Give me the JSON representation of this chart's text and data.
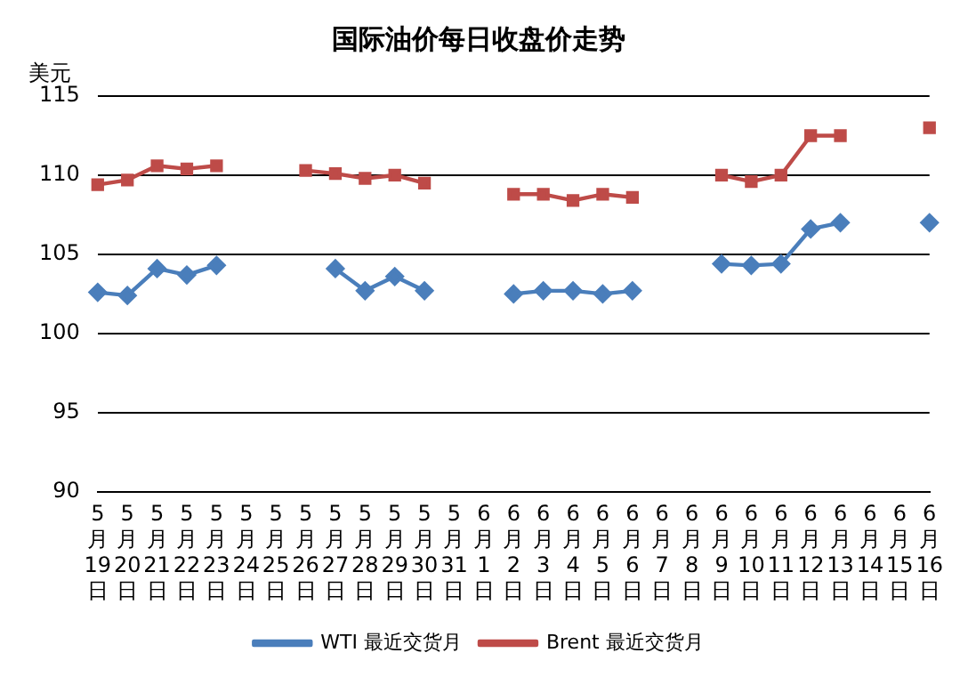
{
  "chart_data": {
    "type": "line",
    "title": "国际油价每日收盘价走势",
    "ylabel": "美元",
    "categories": [
      "5月19日",
      "5月20日",
      "5月21日",
      "5月22日",
      "5月23日",
      "5月24日",
      "5月25日",
      "5月26日",
      "5月27日",
      "5月28日",
      "5月29日",
      "5月30日",
      "5月31日",
      "6月1日",
      "6月2日",
      "6月3日",
      "6月4日",
      "6月5日",
      "6月6日",
      "6月7日",
      "6月8日",
      "6月9日",
      "6月10日",
      "6月11日",
      "6月12日",
      "6月13日",
      "6月14日",
      "6月15日",
      "6月16日"
    ],
    "series": [
      {
        "name": "WTI 最近交货月",
        "color": "#4a7ebb",
        "marker": "diamond",
        "values": [
          102.6,
          102.4,
          104.1,
          103.7,
          104.3,
          null,
          null,
          null,
          104.1,
          102.7,
          103.6,
          102.7,
          null,
          null,
          102.5,
          102.7,
          102.7,
          102.5,
          102.7,
          null,
          null,
          104.4,
          104.3,
          104.4,
          106.6,
          107.0,
          null,
          null,
          107.0
        ]
      },
      {
        "name": "Brent 最近交货月",
        "color": "#be4b48",
        "marker": "square",
        "values": [
          109.4,
          109.7,
          110.6,
          110.4,
          110.6,
          null,
          null,
          110.3,
          110.1,
          109.8,
          110.0,
          109.5,
          null,
          null,
          108.8,
          108.8,
          108.4,
          108.8,
          108.6,
          null,
          null,
          110.0,
          109.6,
          110.0,
          112.5,
          112.5,
          null,
          null,
          113.0
        ]
      }
    ],
    "ylim": [
      90,
      115
    ],
    "yticks": [
      90,
      95,
      100,
      105,
      110,
      115
    ],
    "grid": "y",
    "legend": "bottom"
  }
}
